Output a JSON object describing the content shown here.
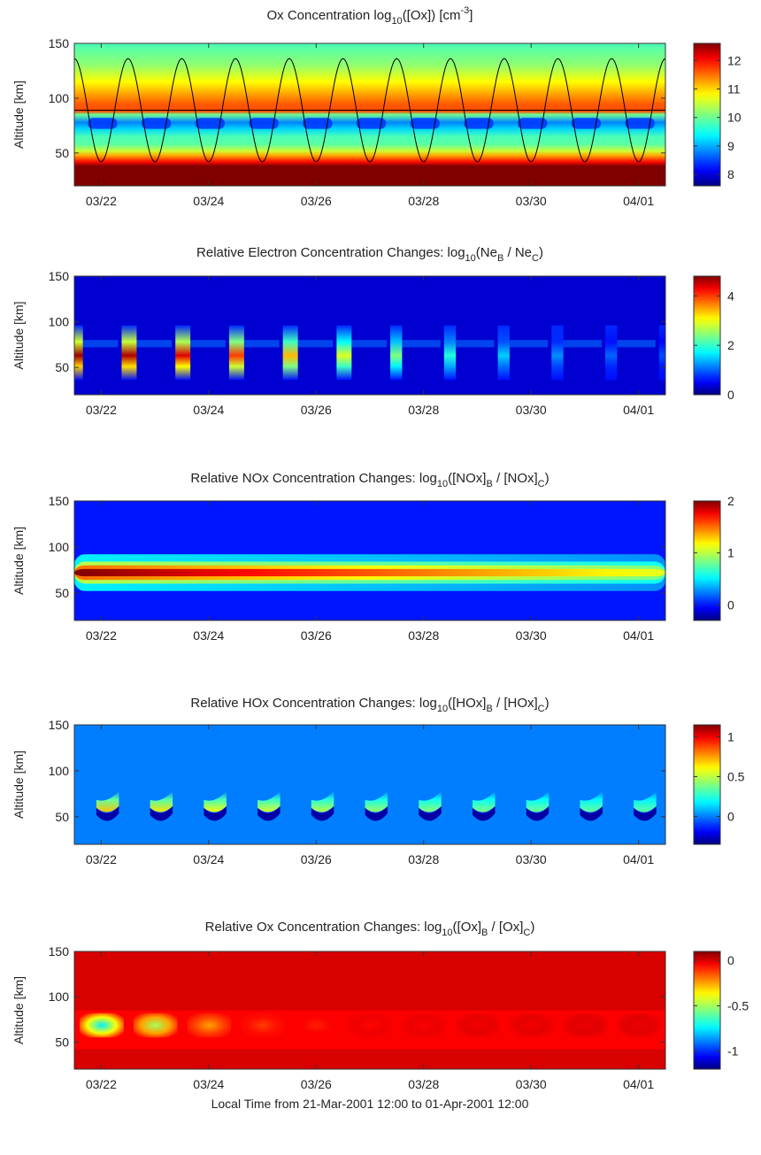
{
  "chart_data": [
    {
      "type": "heatmap",
      "title": "Ox Concentration log10([Ox]) [cm-3]",
      "title_parts": {
        "main": "Ox Concentration log",
        "sub1": "10",
        "mid": "([Ox]) [cm",
        "sup": "-3",
        "end": "]"
      },
      "ylabel": "Altitude [km]",
      "xlabel": "",
      "x_ticks": [
        "03/22",
        "03/24",
        "03/26",
        "03/28",
        "03/30",
        "04/01"
      ],
      "y_ticks": [
        50,
        100,
        150
      ],
      "ylim": [
        20,
        150
      ],
      "colorbar": {
        "min": 7.6,
        "max": 12.6,
        "ticks": [
          8,
          9,
          10,
          11,
          12
        ]
      },
      "profile": [
        {
          "alt": 20,
          "value": 12.6
        },
        {
          "alt": 38,
          "value": 12.6
        },
        {
          "alt": 42,
          "value": 12.0
        },
        {
          "alt": 48,
          "value": 11.2
        },
        {
          "alt": 52,
          "value": 10.5
        },
        {
          "alt": 58,
          "value": 9.9
        },
        {
          "alt": 65,
          "value": 9.8
        },
        {
          "alt": 72,
          "value": 9.2
        },
        {
          "alt": 78,
          "value": 8.8
        },
        {
          "alt": 85,
          "value": 10.0
        },
        {
          "alt": 88,
          "value": 11.7
        },
        {
          "alt": 95,
          "value": 11.6
        },
        {
          "alt": 105,
          "value": 11.2
        },
        {
          "alt": 115,
          "value": 10.8
        },
        {
          "alt": 130,
          "value": 10.2
        },
        {
          "alt": 150,
          "value": 9.8
        }
      ],
      "reference_altitude_km": 89,
      "overlay_curve": {
        "min_km": 42,
        "max_km": 136
      }
    },
    {
      "type": "heatmap",
      "title": "Relative Electron Concentration Changes: log10(NeB / NeC)",
      "title_parts": {
        "main": "Relative Electron Concentration Changes: log",
        "sub1": "10",
        "mid": "(Ne",
        "sub2": "B",
        "mid2": " / Ne",
        "sub3": "C",
        "end": ")"
      },
      "ylabel": "Altitude [km]",
      "xlabel": "",
      "x_ticks": [
        "03/22",
        "03/24",
        "03/26",
        "03/28",
        "03/30",
        "04/01"
      ],
      "y_ticks": [
        50,
        100,
        150
      ],
      "ylim": [
        20,
        150
      ],
      "colorbar": {
        "min": 0,
        "max": 4.8,
        "ticks": [
          0,
          2,
          4
        ]
      },
      "background_value": 0,
      "daily_peak_values": [
        4.7,
        4.6,
        4.4,
        4.0,
        3.4,
        2.9,
        2.4,
        1.9,
        1.5,
        1.2,
        1.0,
        0.9
      ]
    },
    {
      "type": "heatmap",
      "title": "Relative NOx Concentration Changes: log10([NOx]B / [NOx]C)",
      "title_parts": {
        "main": "Relative NOx Concentration Changes: log",
        "sub1": "10",
        "mid": "([NOx]",
        "sub2": "B",
        "mid2": " / [NOx]",
        "sub3": "C",
        "end": ")"
      },
      "ylabel": "Altitude [km]",
      "xlabel": "",
      "x_ticks": [
        "03/22",
        "03/24",
        "03/26",
        "03/28",
        "03/30",
        "04/01"
      ],
      "y_ticks": [
        50,
        100,
        150
      ],
      "ylim": [
        20,
        150
      ],
      "colorbar": {
        "min": -0.3,
        "max": 2,
        "ticks": [
          0,
          1,
          2
        ]
      },
      "background_value": 0,
      "peak_altitude_km": 72,
      "peak_value_start": 2.0,
      "peak_value_end": 1.1
    },
    {
      "type": "heatmap",
      "title": "Relative HOx Concentration Changes: log10([HOx]B / [HOx]C)",
      "title_parts": {
        "main": "Relative HOx Concentration Changes: log",
        "sub1": "10",
        "mid": "([HOx]",
        "sub2": "B",
        "mid2": " / [HOx]",
        "sub3": "C",
        "end": ")"
      },
      "ylabel": "Altitude [km]",
      "xlabel": "",
      "x_ticks": [
        "03/22",
        "03/24",
        "03/26",
        "03/28",
        "03/30",
        "04/01"
      ],
      "y_ticks": [
        50,
        100,
        150
      ],
      "ylim": [
        20,
        150
      ],
      "colorbar": {
        "min": -0.35,
        "max": 1.15,
        "ticks": [
          0,
          0.5,
          1
        ]
      },
      "background_value": 0,
      "daily_peak_values": [
        0.7,
        0.65,
        0.6,
        0.55,
        0.5,
        0.45,
        0.42,
        0.4,
        0.38,
        0.36,
        0.35,
        0.34
      ]
    },
    {
      "type": "heatmap",
      "title": "Relative Ox Concentration Changes: log10([Ox]B / [Ox]C)",
      "title_parts": {
        "main": "Relative Ox Concentration Changes: log",
        "sub1": "10",
        "mid": "([Ox]",
        "sub2": "B",
        "mid2": " / [Ox]",
        "sub3": "C",
        "end": ")"
      },
      "ylabel": "Altitude [km]",
      "xlabel": "Local Time from 21-Mar-2001 12:00 to 01-Apr-2001 12:00",
      "x_ticks": [
        "03/22",
        "03/24",
        "03/26",
        "03/28",
        "03/30",
        "04/01"
      ],
      "y_ticks": [
        50,
        100,
        150
      ],
      "ylim": [
        20,
        150
      ],
      "colorbar": {
        "min": -1.2,
        "max": 0.1,
        "ticks": [
          0,
          -0.5,
          -1
        ]
      },
      "background_value": 0,
      "daily_min_values": [
        -0.75,
        -0.5,
        -0.25,
        -0.12,
        -0.08,
        -0.05,
        -0.04,
        -0.03,
        -0.03,
        -0.02,
        -0.02
      ]
    }
  ]
}
